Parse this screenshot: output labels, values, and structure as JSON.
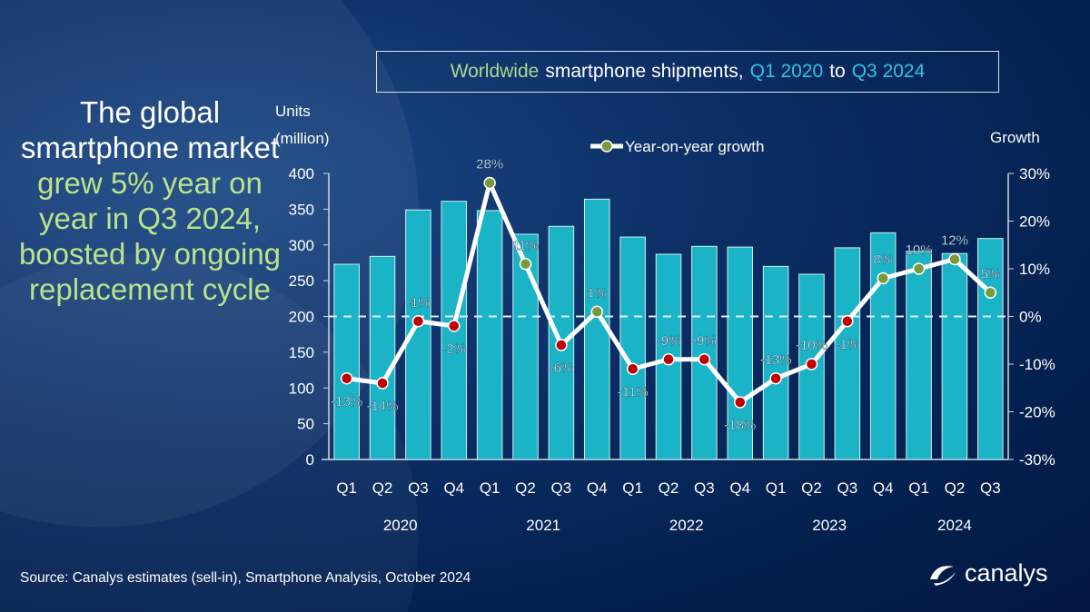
{
  "headline": {
    "white": "The global smartphone market",
    "green": "grew 5% year on year in Q3 2024, boosted by ongoing replacement cycle"
  },
  "title": {
    "part1": "Worldwide",
    "part2": "smartphone shipments,",
    "part3": "Q1 2020",
    "part4": "to",
    "part5": "Q3 2024"
  },
  "source": "Source: Canalys estimates (sell-in), Smartphone Analysis, October 2024",
  "logo": "canalys",
  "colors": {
    "bar": "#1bb3c6",
    "line": "#ffffff",
    "positive_marker": "#7a9a3a",
    "negative_marker": "#c00000",
    "background": "#04204f"
  },
  "chart_data": {
    "type": "bar+line",
    "categories": [
      "Q1",
      "Q2",
      "Q3",
      "Q4",
      "Q1",
      "Q2",
      "Q3",
      "Q4",
      "Q1",
      "Q2",
      "Q3",
      "Q4",
      "Q1",
      "Q2",
      "Q3",
      "Q4",
      "Q1",
      "Q2",
      "Q3"
    ],
    "years": [
      {
        "label": "2020",
        "from": 0,
        "to": 3
      },
      {
        "label": "2021",
        "from": 4,
        "to": 7
      },
      {
        "label": "2022",
        "from": 8,
        "to": 11
      },
      {
        "label": "2023",
        "from": 12,
        "to": 15
      },
      {
        "label": "2024",
        "from": 16,
        "to": 18
      }
    ],
    "ylabel_left": "Units (million)",
    "ylabel_right": "Growth",
    "ylim_left": [
      0,
      400
    ],
    "ylim_right": [
      -30,
      30
    ],
    "left_ticks": [
      "0",
      "50",
      "100",
      "150",
      "200",
      "250",
      "300",
      "350",
      "400"
    ],
    "right_ticks": [
      "-30%",
      "-20%",
      "-10%",
      "0%",
      "10%",
      "20%",
      "30%"
    ],
    "series": [
      {
        "type": "bar",
        "values": [
          273,
          284,
          349,
          361,
          348,
          315,
          326,
          364,
          311,
          287,
          298,
          297,
          270,
          259,
          296,
          317,
          291,
          288,
          309
        ]
      },
      {
        "type": "line",
        "name": "Year-on-year growth",
        "values": [
          -13,
          -14,
          -1,
          -2,
          28,
          11,
          -6,
          1,
          -11,
          -9,
          -9,
          -18,
          -13,
          -10,
          -1,
          8,
          10,
          12,
          5
        ],
        "labels": [
          "-13%",
          "-14%",
          "-1%",
          "-2%",
          "28%",
          "11%",
          "-6%",
          "1%",
          "-11%",
          "-9%",
          "-9%",
          "-18%",
          "-13%",
          "-10%",
          "-1%",
          "8%",
          "10%",
          "12%",
          "5%"
        ]
      }
    ],
    "legend": "top-center"
  }
}
